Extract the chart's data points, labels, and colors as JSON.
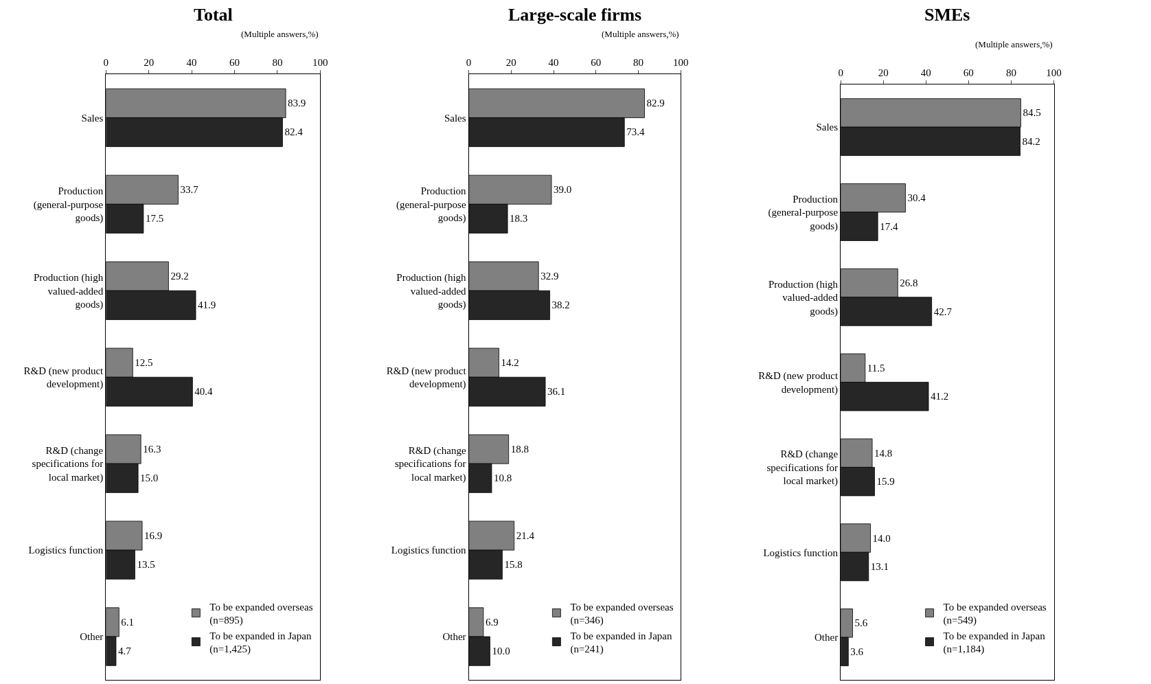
{
  "chart_data": [
    {
      "type": "bar",
      "orientation": "horizontal",
      "title": "Total",
      "annotations": [
        "(Multiple answers,%)"
      ],
      "categories": [
        "Sales",
        "Production\n(general-purpose\ngoods)",
        "Production (high\nvalued-added\ngoods)",
        "R&D (new product\ndevelopment)",
        "R&D (change\nspecifications for\nlocal market)",
        "Logistics function",
        "Other"
      ],
      "series": [
        {
          "name": "To be expanded overseas\n(n=895)",
          "color": "#808080",
          "values": [
            83.9,
            33.7,
            29.2,
            12.5,
            16.3,
            16.9,
            6.1
          ],
          "value_labels": [
            "83.9",
            "33.7",
            "29.2",
            "12.5",
            "16.3",
            "16.9",
            "6.1"
          ]
        },
        {
          "name": "To be expanded in Japan\n(n=1,425)",
          "color": "#262626",
          "values": [
            82.4,
            17.5,
            41.9,
            40.4,
            15.0,
            13.5,
            4.7
          ],
          "value_labels": [
            "82.4",
            "17.5",
            "41.9",
            "40.4",
            "15.0",
            "13.5",
            "4.7"
          ]
        }
      ],
      "xlim": [
        0,
        100
      ],
      "xticks": [
        0,
        20,
        40,
        60,
        80,
        100
      ],
      "legend": "bottom right"
    },
    {
      "type": "bar",
      "orientation": "horizontal",
      "title": "Large-scale firms",
      "annotations": [
        "(Multiple answers,%)"
      ],
      "categories": [
        "Sales",
        "Production\n(general-purpose\ngoods)",
        "Production (high\nvalued-added\ngoods)",
        "R&D (new product\ndevelopment)",
        "R&D (change\nspecifications for\nlocal market)",
        "Logistics function",
        "Other"
      ],
      "series": [
        {
          "name": "To be expanded overseas\n(n=346)",
          "color": "#808080",
          "values": [
            82.9,
            39.0,
            32.9,
            14.2,
            18.8,
            21.4,
            6.9
          ],
          "value_labels": [
            "82.9",
            "39.0",
            "32.9",
            "14.2",
            "18.8",
            "21.4",
            "6.9"
          ]
        },
        {
          "name": "To be expanded in Japan\n(n=241)",
          "color": "#262626",
          "values": [
            73.4,
            18.3,
            38.2,
            36.1,
            10.8,
            15.8,
            10.0
          ],
          "value_labels": [
            "73.4",
            "18.3",
            "38.2",
            "36.1",
            "10.8",
            "15.8",
            "10.0"
          ]
        }
      ],
      "xlim": [
        0,
        100
      ],
      "xticks": [
        0,
        20,
        40,
        60,
        80,
        100
      ],
      "legend": "bottom right"
    },
    {
      "type": "bar",
      "orientation": "horizontal",
      "title": "SMEs",
      "annotations": [
        "(Multiple answers,%)"
      ],
      "categories": [
        "Sales",
        "Production\n(general-purpose\ngoods)",
        "Production (high\nvalued-added\ngoods)",
        "R&D (new product\ndevelopment)",
        "R&D (change\nspecifications for\nlocal market)",
        "Logistics function",
        "Other"
      ],
      "series": [
        {
          "name": "To be expanded overseas\n(n=549)",
          "color": "#808080",
          "values": [
            84.5,
            30.4,
            26.8,
            11.5,
            14.8,
            14.0,
            5.6
          ],
          "value_labels": [
            "84.5",
            "30.4",
            "26.8",
            "11.5",
            "14.8",
            "14.0",
            "5.6"
          ]
        },
        {
          "name": "To be expanded in Japan\n(n=1,184)",
          "color": "#262626",
          "values": [
            84.2,
            17.4,
            42.7,
            41.2,
            15.9,
            13.1,
            3.6
          ],
          "value_labels": [
            "84.2",
            "17.4",
            "42.7",
            "41.2",
            "15.9",
            "13.1",
            "3.6"
          ]
        }
      ],
      "xlim": [
        0,
        100
      ],
      "xticks": [
        0,
        20,
        40,
        60,
        80,
        100
      ],
      "legend": "bottom right"
    }
  ]
}
